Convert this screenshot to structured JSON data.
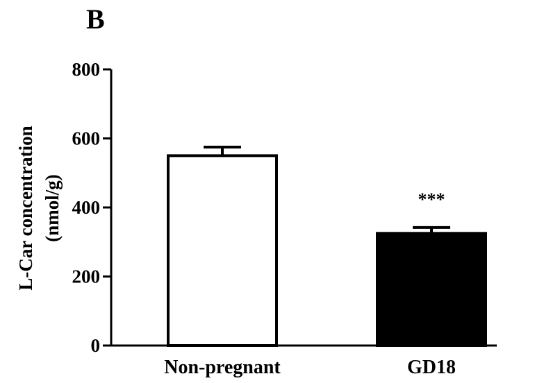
{
  "panel_label": "B",
  "chart_data": {
    "type": "bar",
    "categories": [
      "Non-pregnant",
      "GD18"
    ],
    "values": [
      550,
      325
    ],
    "error": [
      25,
      17
    ],
    "bar_fills": [
      "#ffffff",
      "#000000"
    ],
    "annotations": [
      "",
      "***"
    ],
    "ylabel_line1": "L-Car concentration",
    "ylabel_line2": "(nmol/g)",
    "xlabel": "",
    "ylim": [
      0,
      800
    ],
    "yticks": [
      0,
      200,
      400,
      600,
      800
    ],
    "grid": false,
    "legend": "none"
  }
}
